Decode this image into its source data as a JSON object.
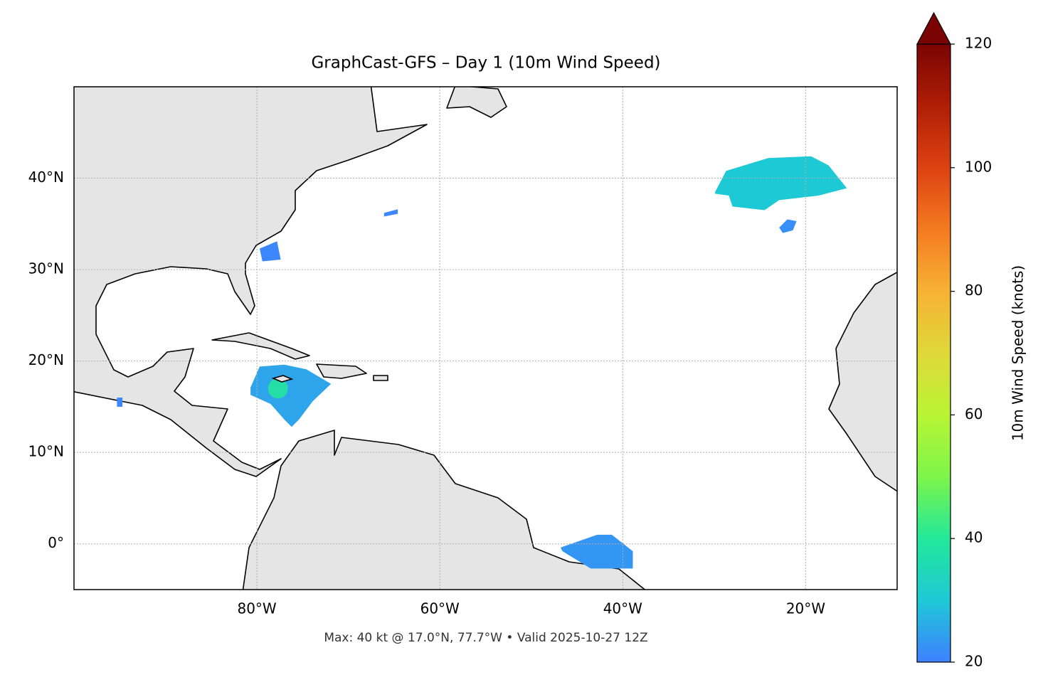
{
  "chart_data": {
    "type": "map",
    "title": "GraphCast-GFS – Day 1 (10m Wind Speed)",
    "annotation": "Max: 40 kt @ 17.0°N, 77.7°W • Valid 2025-10-27 12Z",
    "xlim": [
      -100,
      -10
    ],
    "ylim": [
      -5,
      50
    ],
    "xticks": [
      {
        "value": -80,
        "label": "80°W"
      },
      {
        "value": -60,
        "label": "60°W"
      },
      {
        "value": -40,
        "label": "40°W"
      },
      {
        "value": -20,
        "label": "20°W"
      }
    ],
    "yticks": [
      {
        "value": 0,
        "label": "0°"
      },
      {
        "value": 10,
        "label": "10°N"
      },
      {
        "value": 20,
        "label": "20°N"
      },
      {
        "value": 30,
        "label": "30°N"
      },
      {
        "value": 40,
        "label": "40°N"
      }
    ],
    "grid": true,
    "colorbar": {
      "label": "10m Wind Speed (knots)",
      "clim": [
        20,
        120
      ],
      "ticks": [
        20,
        40,
        60,
        80,
        100,
        120
      ],
      "colormap": [
        "#3e80ff",
        "#1ec9d6",
        "#22e89a",
        "#7df54a",
        "#b9f534",
        "#dfd838",
        "#f7b234",
        "#f47a20",
        "#dc4211",
        "#b01e05",
        "#7a0403"
      ]
    },
    "wind_areas": [
      {
        "lon": [
          -80.7,
          -79.7,
          -77.0,
          -74.6,
          -71.9,
          -73.9,
          -75.4,
          -76.2,
          -77.0,
          -78.5,
          -80.7
        ],
        "lat": [
          17.1,
          19.4,
          19.6,
          19.1,
          17.5,
          15.6,
          13.6,
          12.8,
          13.6,
          15.3,
          16.3
        ],
        "value": 25
      },
      {
        "lon": [
          -29.9,
          -28.7,
          -24.1,
          -19.4,
          -17.5,
          -15.5,
          -18.6,
          -22.9,
          -24.5,
          -28.0,
          -28.4,
          -29.9
        ],
        "lat": [
          38.5,
          40.8,
          42.2,
          42.4,
          41.4,
          38.9,
          38.1,
          37.6,
          36.5,
          36.9,
          38.1,
          38.3
        ],
        "value": 30
      },
      {
        "lon": [
          -22.9,
          -22.0,
          -21.0,
          -21.4,
          -22.5
        ],
        "lat": [
          34.6,
          35.5,
          35.3,
          34.3,
          34.0
        ],
        "value": 22
      },
      {
        "lon": [
          -46.8,
          -42.8,
          -41.2,
          -38.9,
          -38.9,
          -43.5,
          -46.6
        ],
        "lat": [
          -0.4,
          1.0,
          1.0,
          -0.8,
          -2.7,
          -2.7,
          -0.8
        ],
        "value": 23
      },
      {
        "lon": [
          -79.7,
          -77.8,
          -77.4,
          -79.4
        ],
        "lat": [
          32.3,
          33.1,
          31.1,
          30.9
        ],
        "value": 21
      },
      {
        "lon": [
          -66.1,
          -64.6,
          -64.6,
          -66.1
        ],
        "lat": [
          36.2,
          36.6,
          36.1,
          35.8
        ],
        "value": 21
      },
      {
        "lon": [
          -95.3,
          -94.7,
          -94.7,
          -95.3
        ],
        "lat": [
          16.0,
          16.0,
          15.0,
          15.0
        ],
        "value": 21
      }
    ],
    "peak": {
      "lon": -77.7,
      "lat": 17.0,
      "value": 40
    }
  }
}
